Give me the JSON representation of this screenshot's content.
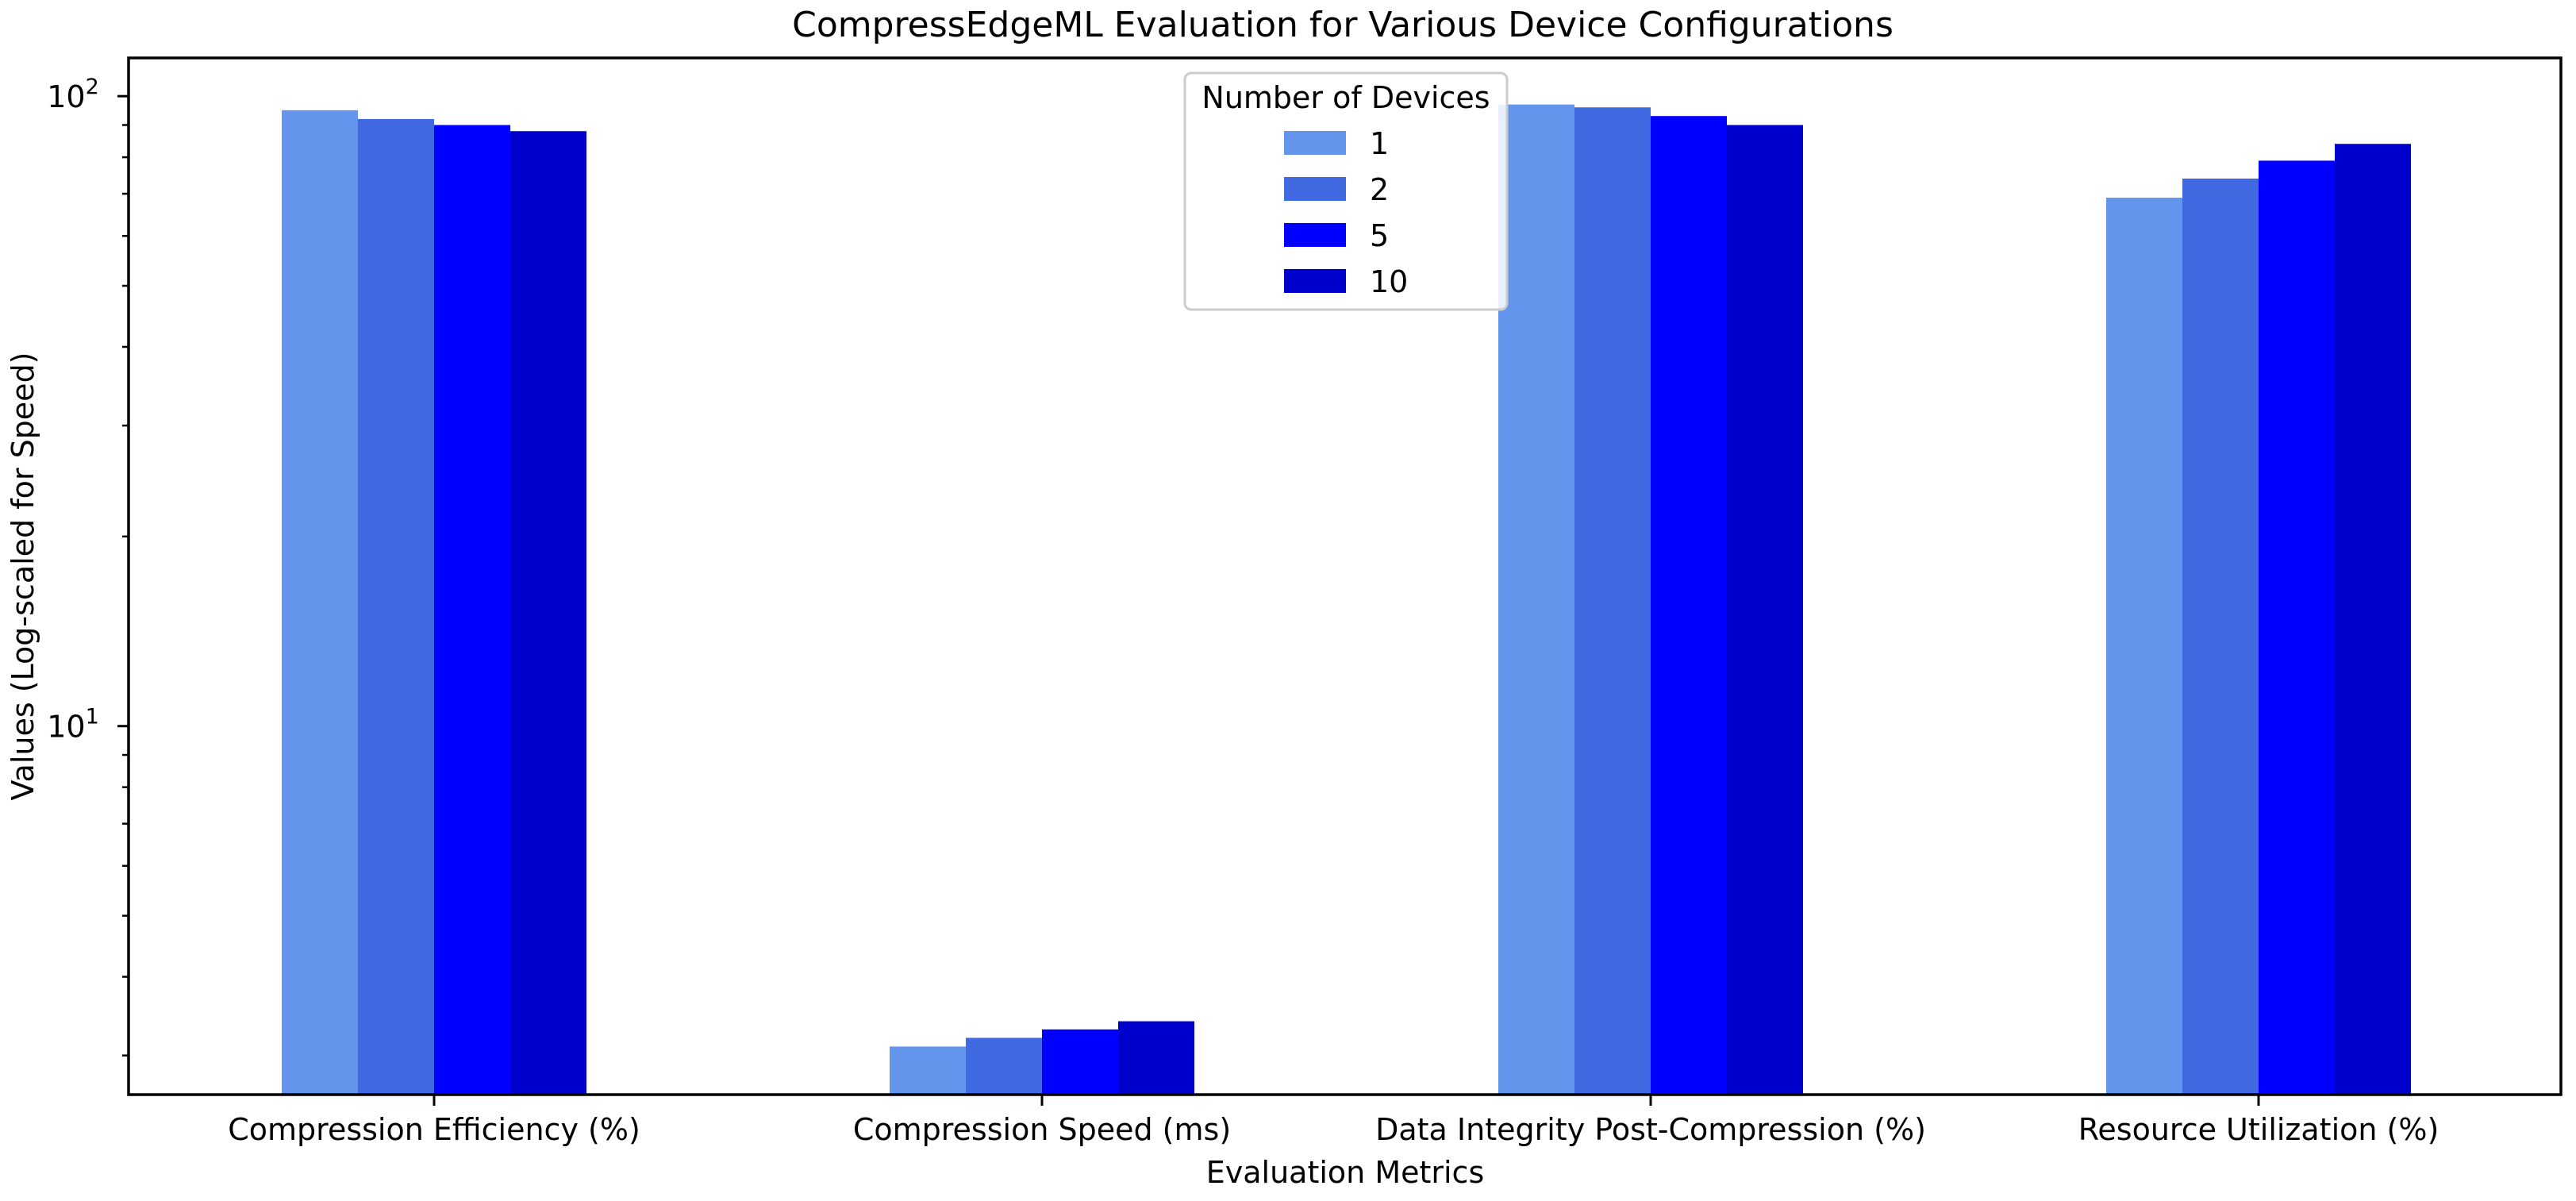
{
  "chart_data": {
    "type": "bar",
    "title": "CompressEdgeML Evaluation for Various Device Configurations",
    "xlabel": "Evaluation Metrics",
    "ylabel": "Values (Log-scaled for Speed)",
    "yscale": "log",
    "ylim": [
      2.6,
      115
    ],
    "yticks": [
      {
        "value": 10,
        "base": "10",
        "exp": "1"
      },
      {
        "value": 100,
        "base": "10",
        "exp": "2"
      }
    ],
    "categories": [
      "Compression Efficiency (%)",
      "Compression Speed (ms)",
      "Data Integrity Post-Compression (%)",
      "Resource Utilization (%)"
    ],
    "legend": {
      "title": "Number of Devices",
      "placement": "upper-center"
    },
    "series": [
      {
        "name": "1",
        "color": "#6495ED",
        "values": [
          95,
          3.1,
          97,
          69
        ]
      },
      {
        "name": "2",
        "color": "#4169E1",
        "values": [
          92,
          3.2,
          96,
          74
        ]
      },
      {
        "name": "5",
        "color": "#0000FF",
        "values": [
          90,
          3.3,
          93,
          79
        ]
      },
      {
        "name": "10",
        "color": "#0000CD",
        "values": [
          88,
          3.4,
          90,
          84
        ]
      }
    ],
    "grid": false
  }
}
